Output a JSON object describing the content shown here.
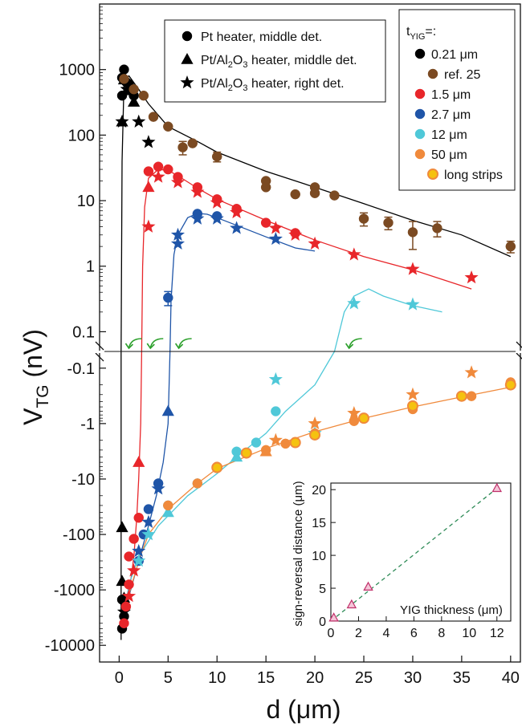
{
  "chart_data": {
    "type": "scatter",
    "main": {
      "xlabel": "d (μm)",
      "ylabel": "V_TG (nV)",
      "xlim": [
        -2,
        41
      ],
      "upper_ylim_log": [
        0.05,
        10000
      ],
      "lower_ylim_log_magnitude": [
        0.05,
        20000
      ],
      "upper_scale": "log",
      "lower_scale": "log (negative values)",
      "x_ticks": [
        0,
        5,
        10,
        15,
        20,
        25,
        30,
        35,
        40
      ],
      "x_tick_labels": [
        "0",
        "5",
        "10",
        "15",
        "20",
        "25",
        "30",
        "35",
        "40"
      ],
      "upper_y_ticks": [
        0.1,
        1,
        10,
        100,
        1000
      ],
      "upper_y_tick_labels": [
        "0.1",
        "1",
        "10",
        "100",
        "1000"
      ],
      "lower_y_ticks": [
        -0.1,
        -1,
        -10,
        -100,
        -1000,
        -10000
      ],
      "lower_y_tick_labels": [
        "-0.1",
        "-1",
        "-10",
        "-100",
        "-1000",
        "-10000"
      ],
      "marker_legend": [
        {
          "marker": "circle",
          "label": "Pt heater, middle det."
        },
        {
          "marker": "triangle",
          "label_parts": [
            "Pt/Al",
            "2",
            "O",
            "3",
            " heater, middle det."
          ]
        },
        {
          "marker": "star",
          "label_parts": [
            "Pt/Al",
            "2",
            "O",
            "3",
            " heater,  right det."
          ]
        }
      ],
      "color_legend_title_parts": [
        "t",
        "YIG",
        "=:"
      ],
      "series": [
        {
          "name": "0.21 μm",
          "color": "#000000",
          "circles": [
            [
              0.3,
              750
            ],
            [
              0.5,
              1000
            ],
            [
              0.3,
              400
            ],
            [
              0.7,
              650
            ],
            [
              1.0,
              600
            ],
            [
              1.5,
              400
            ],
            [
              0.3,
              -1500
            ],
            [
              0.5,
              -3000
            ],
            [
              0.3,
              -5000
            ]
          ],
          "triangles": [
            [
              0.3,
              160
            ],
            [
              0.5,
              700
            ],
            [
              1.0,
              480
            ],
            [
              1.5,
              320
            ],
            [
              0.3,
              -75
            ],
            [
              0.3,
              -700
            ],
            [
              0.5,
              -1400
            ]
          ],
          "stars": [
            [
              0.3,
              160
            ],
            [
              0.8,
              500
            ],
            [
              2.0,
              160
            ],
            [
              3.0,
              78
            ],
            [
              0.5,
              -2500
            ]
          ],
          "fit_upper": [
            [
              0.2,
              0.05
            ],
            [
              0.3,
              40
            ],
            [
              0.5,
              700
            ],
            [
              1.0,
              800
            ],
            [
              2.0,
              500
            ],
            [
              3.0,
              300
            ],
            [
              5.0,
              135
            ],
            [
              8.0,
              80
            ],
            [
              10.0,
              55
            ],
            [
              15.0,
              28
            ],
            [
              20.0,
              16
            ],
            [
              25.0,
              9
            ],
            [
              30.0,
              5
            ],
            [
              35.0,
              3
            ],
            [
              40.0,
              1.4
            ]
          ],
          "fit_lower": [
            [
              0.2,
              0.05
            ],
            [
              0.2,
              -8000
            ]
          ]
        },
        {
          "name": "ref. 25",
          "color": "#7b4a22",
          "circles": [
            [
              0.5,
              720
            ],
            [
              1.5,
              500
            ],
            [
              2.5,
              400
            ],
            [
              3.5,
              190
            ],
            [
              5.0,
              135
            ],
            [
              6.5,
              65
            ],
            [
              7.5,
              75
            ],
            [
              10.0,
              47
            ],
            [
              15.0,
              20
            ],
            [
              15.0,
              16
            ],
            [
              18.0,
              12.5
            ],
            [
              20.0,
              16
            ],
            [
              20.0,
              13
            ],
            [
              22.0,
              12
            ],
            [
              25.0,
              5.3
            ],
            [
              27.5,
              4.6
            ],
            [
              30.0,
              3.3
            ],
            [
              32.5,
              3.8
            ],
            [
              40.0,
              2.0
            ]
          ],
          "error": [
            [
              6.5,
              65,
              15
            ],
            [
              10.0,
              47,
              8
            ],
            [
              25.0,
              5.3,
              1.2
            ],
            [
              27.5,
              4.6,
              1
            ],
            [
              30.0,
              3.3,
              1.5
            ],
            [
              32.5,
              3.8,
              1
            ],
            [
              40.0,
              2.0,
              0.4
            ]
          ]
        },
        {
          "name": "1.5 μm",
          "color": "#e8262a",
          "circles": [
            [
              3.0,
              28
            ],
            [
              4.0,
              33
            ],
            [
              5.0,
              30
            ],
            [
              6.0,
              23
            ],
            [
              8.0,
              16
            ],
            [
              10.0,
              10.5
            ],
            [
              12.0,
              7.5
            ],
            [
              15.0,
              4.6
            ],
            [
              18.0,
              3.2
            ],
            [
              1.0,
              -250
            ],
            [
              1.5,
              -120
            ],
            [
              2.0,
              -50
            ],
            [
              1.0,
              -800
            ],
            [
              0.7,
              -2000
            ],
            [
              0.5,
              -4000
            ]
          ],
          "triangles": [
            [
              3.0,
              16
            ],
            [
              2.0,
              -5
            ]
          ],
          "stars": [
            [
              3.0,
              4.0
            ],
            [
              4.0,
              23
            ],
            [
              6.0,
              19
            ],
            [
              8.0,
              13.5
            ],
            [
              10.0,
              9.3
            ],
            [
              12.0,
              6.6
            ],
            [
              16.0,
              3.8
            ],
            [
              18.0,
              3.0
            ],
            [
              20.0,
              2.2
            ],
            [
              24.0,
              1.5
            ],
            [
              30.0,
              0.9
            ],
            [
              36.0,
              0.67
            ],
            [
              1.5,
              -450
            ],
            [
              1.0,
              -1300
            ]
          ],
          "fit_upper": [
            [
              2.3,
              0.05
            ],
            [
              2.4,
              1
            ],
            [
              2.6,
              8
            ],
            [
              3.0,
              22
            ],
            [
              4.0,
              30
            ],
            [
              5.0,
              29
            ],
            [
              6.0,
              24
            ],
            [
              8.0,
              15.5
            ],
            [
              10.0,
              10.5
            ],
            [
              15.0,
              5.0
            ],
            [
              20.0,
              2.5
            ],
            [
              25.0,
              1.4
            ],
            [
              30.0,
              0.88
            ],
            [
              36.0,
              0.45
            ]
          ],
          "fit_lower": [
            [
              2.3,
              0.05
            ],
            [
              2.2,
              -1
            ],
            [
              2.0,
              -10
            ],
            [
              1.8,
              -50
            ],
            [
              1.5,
              -250
            ],
            [
              1.0,
              -1200
            ],
            [
              0.5,
              -5000
            ]
          ]
        },
        {
          "name": "2.7 μm",
          "color": "#1f55a8",
          "circles": [
            [
              5.0,
              0.33
            ],
            [
              8.0,
              6.3
            ],
            [
              10.0,
              5.8
            ],
            [
              4.0,
              -12
            ],
            [
              3.0,
              -35
            ],
            [
              2.5,
              -100
            ],
            [
              2.0,
              -300
            ]
          ],
          "triangles": [
            [
              5.0,
              -0.6
            ]
          ],
          "stars": [
            [
              6.0,
              3.0
            ],
            [
              6.0,
              2.2
            ],
            [
              8.0,
              5.3
            ],
            [
              10.0,
              5.3
            ],
            [
              12.0,
              3.8
            ],
            [
              16.0,
              2.6
            ],
            [
              4.0,
              -15
            ],
            [
              3.0,
              -60
            ],
            [
              2.0,
              -200
            ]
          ],
          "error": [
            [
              5.0,
              0.33,
              0.08
            ]
          ],
          "fit_upper": [
            [
              5.2,
              0.05
            ],
            [
              5.3,
              0.3
            ],
            [
              5.6,
              1.5
            ],
            [
              6.0,
              3.0
            ],
            [
              7.0,
              5.5
            ],
            [
              8.0,
              6.4
            ],
            [
              9.0,
              6.2
            ],
            [
              10.0,
              5.5
            ],
            [
              12.0,
              4.2
            ],
            [
              15.0,
              2.8
            ],
            [
              18.0,
              1.9
            ],
            [
              20.0,
              1.7
            ]
          ],
          "fit_lower": [
            [
              5.2,
              0.05
            ],
            [
              5.0,
              -1
            ],
            [
              4.5,
              -5
            ],
            [
              3.8,
              -20
            ],
            [
              3.0,
              -70
            ],
            [
              2.0,
              -300
            ],
            [
              1.0,
              -1300
            ],
            [
              0.5,
              -5000
            ]
          ]
        },
        {
          "name": "12 μm",
          "color": "#4fc8d8",
          "circles": [
            [
              5.0,
              -30
            ],
            [
              8.0,
              -12
            ],
            [
              12.0,
              -3.2
            ],
            [
              14.0,
              -2.2
            ],
            [
              16.0,
              -0.6
            ]
          ],
          "triangles": [
            [
              5.0,
              -40
            ],
            [
              12.0,
              -4
            ]
          ],
          "stars": [
            [
              24.0,
              0.27
            ],
            [
              30.0,
              0.26
            ],
            [
              16.0,
              -0.16
            ],
            [
              20.0,
              -1.5
            ],
            [
              3.0,
              -100
            ],
            [
              2.0,
              -300
            ]
          ],
          "fit_upper": [
            [
              22.0,
              0.05
            ],
            [
              23.0,
              0.2
            ],
            [
              24.0,
              0.35
            ],
            [
              25.5,
              0.45
            ],
            [
              27.0,
              0.35
            ],
            [
              30.0,
              0.25
            ],
            [
              33.0,
              0.2
            ]
          ],
          "fit_lower": [
            [
              22.0,
              0.05
            ],
            [
              20.0,
              -0.2
            ],
            [
              17.0,
              -0.6
            ],
            [
              15.0,
              -1.5
            ],
            [
              12.0,
              -4
            ],
            [
              10.0,
              -8
            ],
            [
              7.0,
              -20
            ],
            [
              4.0,
              -70
            ],
            [
              2.0,
              -250
            ],
            [
              1.0,
              -800
            ],
            [
              0.5,
              -3000
            ]
          ]
        },
        {
          "name": "50 μm",
          "color": "#f08a3c",
          "circles": [
            [
              5.0,
              -30
            ],
            [
              8.0,
              -12
            ],
            [
              10.0,
              -6
            ],
            [
              15.0,
              -3.0
            ],
            [
              17.0,
              -2.3
            ],
            [
              20.0,
              -1.5
            ],
            [
              24.0,
              -0.9
            ],
            [
              30.0,
              -0.55
            ],
            [
              36.0,
              -0.32
            ],
            [
              40.0,
              -0.18
            ]
          ],
          "triangles": [
            [
              15.0,
              -3.2
            ]
          ],
          "stars": [
            [
              16.0,
              -2.0
            ],
            [
              20.0,
              -1.0
            ],
            [
              24.0,
              -0.65
            ],
            [
              30.0,
              -0.3
            ],
            [
              36.0,
              -0.12
            ]
          ],
          "fit_lower": [
            [
              0.5,
              -5000
            ],
            [
              1.0,
              -1200
            ],
            [
              2.0,
              -300
            ],
            [
              3.0,
              -100
            ],
            [
              5.0,
              -35
            ],
            [
              8.0,
              -12
            ],
            [
              10.0,
              -6.5
            ],
            [
              15.0,
              -2.8
            ],
            [
              20.0,
              -1.4
            ],
            [
              25.0,
              -0.8
            ],
            [
              30.0,
              -0.5
            ],
            [
              35.0,
              -0.33
            ],
            [
              40.0,
              -0.22
            ]
          ]
        },
        {
          "name": "long strips",
          "color": "#f5c20f",
          "edge": "#f08a3c",
          "circles": [
            [
              10.0,
              -6.2
            ],
            [
              13.0,
              -3.4
            ],
            [
              18.0,
              -2.2
            ],
            [
              20.0,
              -1.6
            ],
            [
              25.0,
              -0.8
            ],
            [
              30.0,
              -0.48
            ],
            [
              35.0,
              -0.32
            ],
            [
              40.0,
              -0.2
            ]
          ]
        }
      ],
      "sign_reversal_arrows_x": [
        0.5,
        2.7,
        5.6,
        23.0
      ]
    },
    "inset": {
      "type": "scatter",
      "xlabel": "YIG thickness (μm)",
      "ylabel": "sign-reversal distance (μm)",
      "xlim": [
        0,
        13
      ],
      "ylim": [
        0,
        21
      ],
      "x_ticks": [
        0,
        2,
        4,
        6,
        8,
        10,
        12
      ],
      "x_tick_labels": [
        "0",
        "2",
        "4",
        "6",
        "8",
        "10",
        "12"
      ],
      "y_ticks": [
        0,
        5,
        10,
        15,
        20
      ],
      "y_tick_labels": [
        "0",
        "5",
        "10",
        "15",
        "20"
      ],
      "points": [
        [
          0.21,
          0.5
        ],
        [
          1.5,
          2.5
        ],
        [
          2.7,
          5.2
        ],
        [
          12.0,
          20.2
        ]
      ],
      "fit_line": [
        [
          0,
          0
        ],
        [
          12.0,
          20.2
        ]
      ],
      "marker_color": "#c0306a",
      "fit_color": "#2e8b57"
    }
  }
}
